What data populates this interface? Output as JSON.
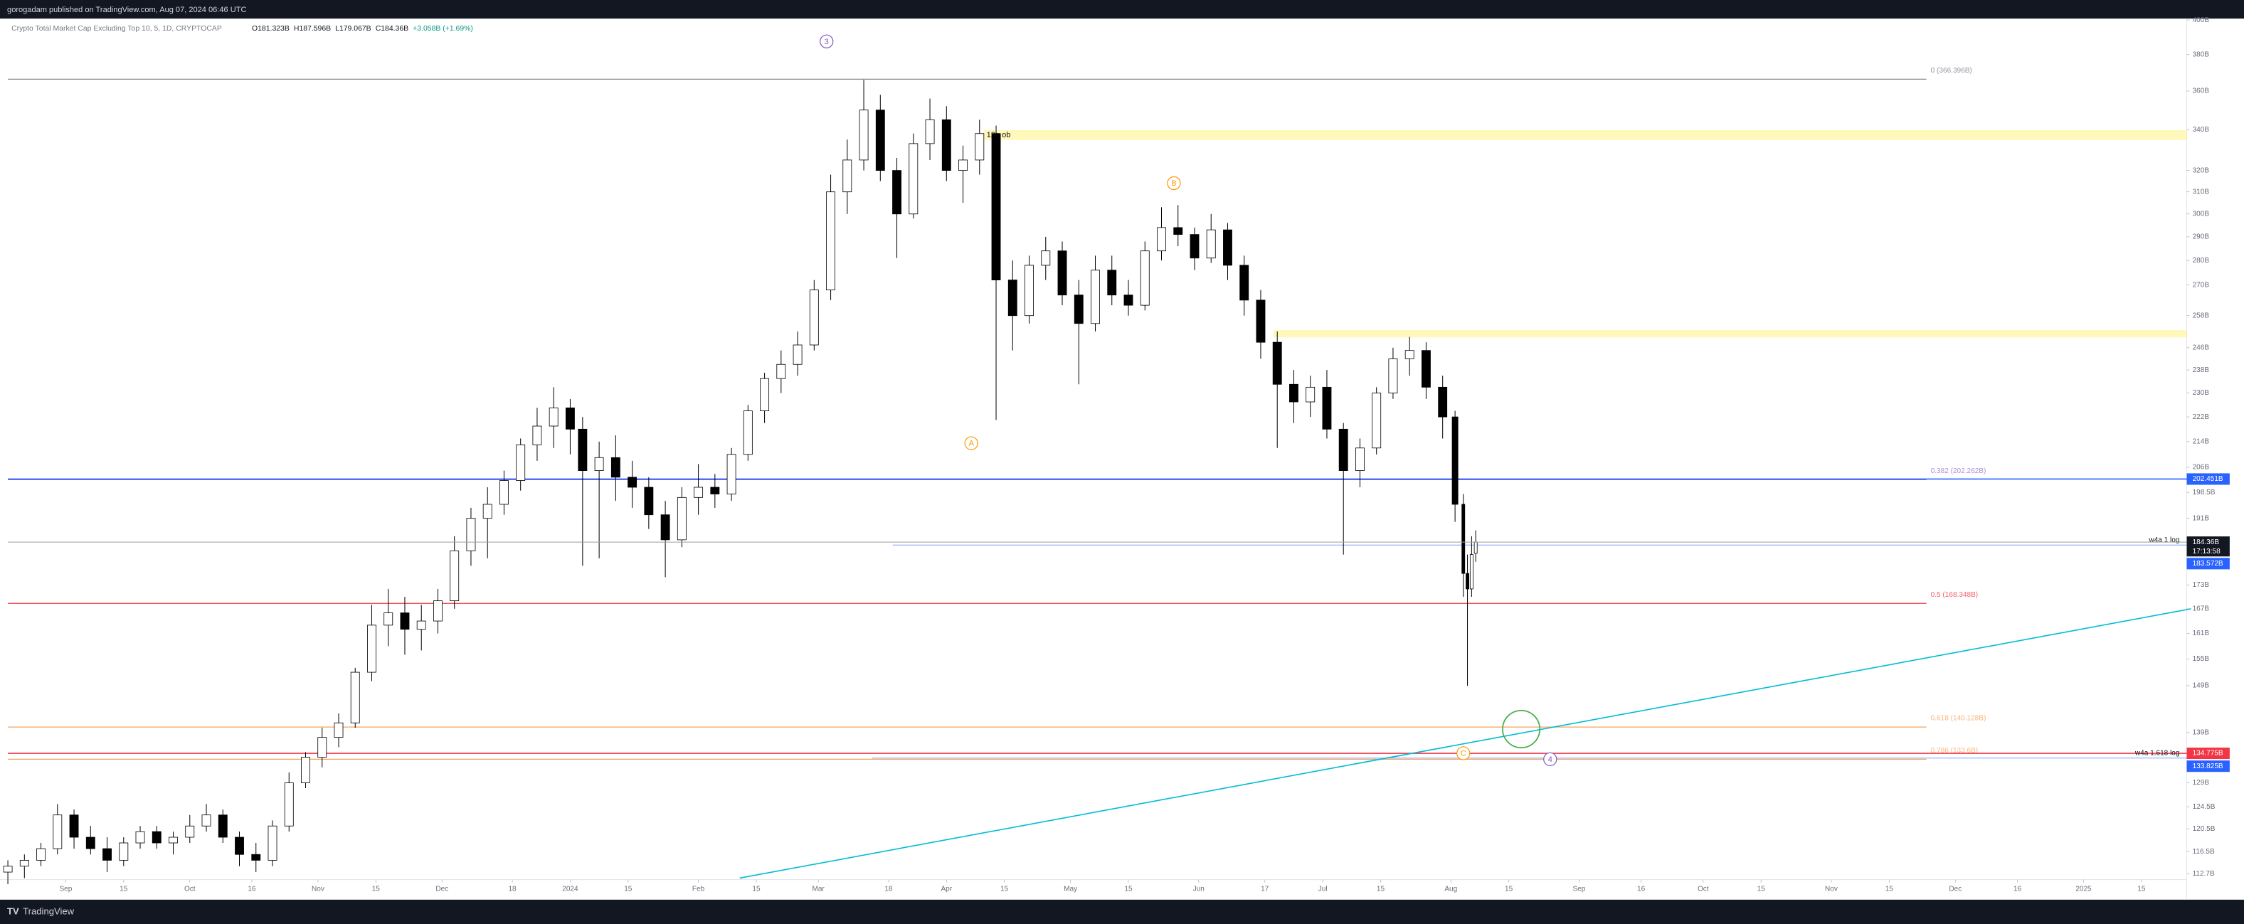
{
  "header": {
    "published": "gorogadam published on TradingView.com, Aug 07, 2024 06:46 UTC"
  },
  "footer": {
    "brand": "TradingView"
  },
  "chart_data": {
    "type": "candlestick",
    "title": "Crypto Total Market Cap Excluding Top 10, 5, 1D, CRYPTOCAP",
    "legend": {
      "open": "O181.323B",
      "high": "H187.596B",
      "low": "L179.067B",
      "close": "C184.36B",
      "change": "+3.058B (+1.69%)"
    },
    "log_scale": true,
    "up_color": "#ffffff",
    "down_color": "#000000",
    "wick_color": "#000000",
    "xlim": [
      "2023-08-18",
      "2025-01-27"
    ],
    "ylim": [
      108.7,
      400
    ],
    "x": [
      "2023-08-18",
      "2023-08-22",
      "2023-08-26",
      "2023-08-30",
      "2023-09-03",
      "2023-09-07",
      "2023-09-11",
      "2023-09-15",
      "2023-09-19",
      "2023-09-23",
      "2023-09-27",
      "2023-10-01",
      "2023-10-05",
      "2023-10-09",
      "2023-10-13",
      "2023-10-17",
      "2023-10-21",
      "2023-10-25",
      "2023-10-29",
      "2023-11-02",
      "2023-11-06",
      "2023-11-10",
      "2023-11-14",
      "2023-11-18",
      "2023-11-22",
      "2023-11-26",
      "2023-11-30",
      "2023-12-04",
      "2023-12-08",
      "2023-12-12",
      "2023-12-16",
      "2023-12-20",
      "2023-12-24",
      "2023-12-28",
      "2024-01-01",
      "2024-01-04",
      "2024-01-08",
      "2024-01-12",
      "2024-01-16",
      "2024-01-20",
      "2024-01-24",
      "2024-01-28",
      "2024-02-01",
      "2024-02-05",
      "2024-02-09",
      "2024-02-13",
      "2024-02-17",
      "2024-02-21",
      "2024-02-25",
      "2024-02-29",
      "2024-03-04",
      "2024-03-08",
      "2024-03-12",
      "2024-03-16",
      "2024-03-20",
      "2024-03-24",
      "2024-03-28",
      "2024-04-01",
      "2024-04-05",
      "2024-04-09",
      "2024-04-13",
      "2024-04-17",
      "2024-04-21",
      "2024-04-25",
      "2024-04-29",
      "2024-05-03",
      "2024-05-07",
      "2024-05-11",
      "2024-05-15",
      "2024-05-19",
      "2024-05-23",
      "2024-05-27",
      "2024-05-31",
      "2024-06-04",
      "2024-06-08",
      "2024-06-12",
      "2024-06-16",
      "2024-06-20",
      "2024-06-24",
      "2024-06-28",
      "2024-07-02",
      "2024-07-06",
      "2024-07-10",
      "2024-07-14",
      "2024-07-18",
      "2024-07-22",
      "2024-07-26",
      "2024-07-30",
      "2024-08-02",
      "2024-08-04",
      "2024-08-05",
      "2024-08-06",
      "2024-08-07"
    ],
    "ohlc": [
      [
        113,
        115,
        111,
        114
      ],
      [
        114,
        116,
        112,
        115
      ],
      [
        115,
        118,
        114,
        117
      ],
      [
        117,
        125,
        116,
        123
      ],
      [
        123,
        124,
        117,
        119
      ],
      [
        119,
        121,
        116,
        117
      ],
      [
        117,
        119,
        113,
        115
      ],
      [
        115,
        119,
        114,
        118
      ],
      [
        118,
        121,
        117,
        120
      ],
      [
        120,
        121,
        117,
        118
      ],
      [
        118,
        120,
        116,
        119
      ],
      [
        119,
        123,
        118,
        121
      ],
      [
        121,
        125,
        120,
        123
      ],
      [
        123,
        124,
        118,
        119
      ],
      [
        119,
        120,
        114,
        116
      ],
      [
        116,
        118,
        113,
        115
      ],
      [
        115,
        122,
        114,
        121
      ],
      [
        121,
        131,
        120,
        129
      ],
      [
        129,
        135,
        128,
        134
      ],
      [
        134,
        140,
        132,
        138
      ],
      [
        138,
        143,
        136,
        141
      ],
      [
        141,
        153,
        140,
        152
      ],
      [
        152,
        168,
        150,
        163
      ],
      [
        163,
        172,
        158,
        166
      ],
      [
        166,
        170,
        156,
        162
      ],
      [
        162,
        168,
        157,
        164
      ],
      [
        164,
        172,
        161,
        169
      ],
      [
        169,
        186,
        167,
        182
      ],
      [
        182,
        194,
        178,
        191
      ],
      [
        191,
        200,
        180,
        195
      ],
      [
        195,
        205,
        192,
        202
      ],
      [
        202,
        215,
        199,
        213
      ],
      [
        213,
        225,
        208,
        219
      ],
      [
        219,
        232,
        212,
        225
      ],
      [
        225,
        228,
        210,
        218
      ],
      [
        218,
        222,
        178,
        205
      ],
      [
        205,
        214,
        180,
        209
      ],
      [
        209,
        216,
        196,
        203
      ],
      [
        203,
        208,
        194,
        200
      ],
      [
        200,
        203,
        188,
        192
      ],
      [
        192,
        196,
        175,
        185
      ],
      [
        185,
        200,
        183,
        197
      ],
      [
        197,
        207,
        192,
        200
      ],
      [
        200,
        204,
        194,
        198
      ],
      [
        198,
        212,
        196,
        210
      ],
      [
        210,
        226,
        208,
        224
      ],
      [
        224,
        237,
        220,
        235
      ],
      [
        235,
        245,
        230,
        240
      ],
      [
        240,
        252,
        236,
        247
      ],
      [
        247,
        272,
        245,
        268
      ],
      [
        268,
        318,
        264,
        310
      ],
      [
        310,
        335,
        300,
        325
      ],
      [
        325,
        366,
        320,
        350
      ],
      [
        350,
        358,
        315,
        320
      ],
      [
        320,
        326,
        281,
        300
      ],
      [
        300,
        338,
        298,
        333
      ],
      [
        333,
        356,
        325,
        345
      ],
      [
        345,
        352,
        315,
        320
      ],
      [
        320,
        332,
        305,
        325
      ],
      [
        325,
        345,
        318,
        338
      ],
      [
        338,
        342,
        221,
        272
      ],
      [
        272,
        280,
        245,
        258
      ],
      [
        258,
        282,
        255,
        278
      ],
      [
        278,
        290,
        272,
        284
      ],
      [
        284,
        288,
        262,
        266
      ],
      [
        266,
        272,
        233,
        255
      ],
      [
        255,
        282,
        252,
        276
      ],
      [
        276,
        282,
        262,
        266
      ],
      [
        266,
        272,
        258,
        262
      ],
      [
        262,
        288,
        260,
        284
      ],
      [
        284,
        303,
        280,
        294
      ],
      [
        294,
        304,
        286,
        291
      ],
      [
        291,
        294,
        276,
        281
      ],
      [
        281,
        300,
        279,
        293
      ],
      [
        293,
        296,
        272,
        278
      ],
      [
        278,
        282,
        258,
        264
      ],
      [
        264,
        268,
        242,
        248
      ],
      [
        248,
        252,
        212,
        233
      ],
      [
        233,
        238,
        220,
        227
      ],
      [
        227,
        236,
        222,
        232
      ],
      [
        232,
        238,
        215,
        218
      ],
      [
        218,
        220,
        181,
        205
      ],
      [
        205,
        215,
        200,
        212
      ],
      [
        212,
        232,
        210,
        230
      ],
      [
        230,
        246,
        228,
        242
      ],
      [
        242,
        250,
        236,
        245
      ],
      [
        245,
        248,
        228,
        232
      ],
      [
        232,
        236,
        215,
        222
      ],
      [
        222,
        224,
        190,
        195
      ],
      [
        195,
        198,
        170,
        176
      ],
      [
        176,
        181,
        149,
        172
      ],
      [
        172,
        186,
        170,
        181
      ],
      [
        181.323,
        187.596,
        179.067,
        184.36
      ]
    ],
    "last_price_label": "184.36B",
    "countdown": "17:13:58",
    "yticks": [
      {
        "value": 400,
        "label": "400B"
      },
      {
        "value": 380,
        "label": "380B"
      },
      {
        "value": 360,
        "label": "360B"
      },
      {
        "value": 340,
        "label": "340B"
      },
      {
        "value": 320,
        "label": "320B"
      },
      {
        "value": 310,
        "label": "310B"
      },
      {
        "value": 300,
        "label": "300B"
      },
      {
        "value": 290,
        "label": "290B"
      },
      {
        "value": 280,
        "label": "280B"
      },
      {
        "value": 270,
        "label": "270B"
      },
      {
        "value": 258,
        "label": "258B"
      },
      {
        "value": 246,
        "label": "246B"
      },
      {
        "value": 238,
        "label": "238B"
      },
      {
        "value": 230,
        "label": "230B"
      },
      {
        "value": 222,
        "label": "222B"
      },
      {
        "value": 214,
        "label": "214B"
      },
      {
        "value": 206,
        "label": "206B"
      },
      {
        "value": 198.5,
        "label": "198.5B"
      },
      {
        "value": 191,
        "label": "191B"
      },
      {
        "value": 173,
        "label": "173B"
      },
      {
        "value": 167,
        "label": "167B"
      },
      {
        "value": 161,
        "label": "161B"
      },
      {
        "value": 155,
        "label": "155B"
      },
      {
        "value": 149,
        "label": "149B"
      },
      {
        "value": 139,
        "label": "139B"
      },
      {
        "value": 129,
        "label": "129B"
      },
      {
        "value": 124.5,
        "label": "124.5B"
      },
      {
        "value": 120.5,
        "label": "120.5B"
      },
      {
        "value": 116.5,
        "label": "116.5B"
      },
      {
        "value": 112.7,
        "label": "112.7B"
      }
    ],
    "xticks": [
      {
        "value": "2023-09-01",
        "label": "Sep"
      },
      {
        "value": "2023-09-15",
        "label": "15"
      },
      {
        "value": "2023-10-01",
        "label": "Oct"
      },
      {
        "value": "2023-10-16",
        "label": "16"
      },
      {
        "value": "2023-11-01",
        "label": "Nov"
      },
      {
        "value": "2023-11-15",
        "label": "15"
      },
      {
        "value": "2023-12-01",
        "label": "Dec"
      },
      {
        "value": "2023-12-18",
        "label": "18"
      },
      {
        "value": "2024-01-01",
        "label": "2024"
      },
      {
        "value": "2024-01-15",
        "label": "15"
      },
      {
        "value": "2024-02-01",
        "label": "Feb"
      },
      {
        "value": "2024-02-15",
        "label": "15"
      },
      {
        "value": "2024-03-01",
        "label": "Mar"
      },
      {
        "value": "2024-03-18",
        "label": "18"
      },
      {
        "value": "2024-04-01",
        "label": "Apr"
      },
      {
        "value": "2024-04-15",
        "label": "15"
      },
      {
        "value": "2024-05-01",
        "label": "May"
      },
      {
        "value": "2024-05-15",
        "label": "15"
      },
      {
        "value": "2024-06-01",
        "label": "Jun"
      },
      {
        "value": "2024-06-17",
        "label": "17"
      },
      {
        "value": "2024-07-01",
        "label": "Jul"
      },
      {
        "value": "2024-07-15",
        "label": "15"
      },
      {
        "value": "2024-08-01",
        "label": "Aug"
      },
      {
        "value": "2024-08-15",
        "label": "15"
      },
      {
        "value": "2024-09-01",
        "label": "Sep"
      },
      {
        "value": "2024-09-16",
        "label": "16"
      },
      {
        "value": "2024-10-01",
        "label": "Oct"
      },
      {
        "value": "2024-10-15",
        "label": "15"
      },
      {
        "value": "2024-11-01",
        "label": "Nov"
      },
      {
        "value": "2024-11-15",
        "label": "15"
      },
      {
        "value": "2024-12-01",
        "label": "Dec"
      },
      {
        "value": "2024-12-16",
        "label": "16"
      },
      {
        "value": "2025-01-01",
        "label": "2025"
      },
      {
        "value": "2025-01-15",
        "label": "15"
      }
    ],
    "fib": {
      "end": "2024-11-24",
      "levels": [
        {
          "value": 366.396,
          "label": "0 (366.396B)",
          "color": "#787b86"
        },
        {
          "value": 202.262,
          "label": "0.382 (202.262B)",
          "color": "#9575cd"
        },
        {
          "value": 168.348,
          "label": "0.5 (168.348B)",
          "color": "#f23645"
        },
        {
          "value": 140.128,
          "label": "0.618 (140.128B)",
          "color": "#f7a35c"
        },
        {
          "value": 133.6,
          "label": "0.786 (133.6B)",
          "color": "#f7a35c"
        }
      ]
    },
    "lines": [
      {
        "value": 202.451,
        "label": "202.451B",
        "color": "#2962ff",
        "start": "2023-08-18"
      },
      {
        "value": 183.572,
        "label": "183.572B",
        "color": "#2962ff",
        "start": "2024-03-19",
        "text": "w4a 1 log"
      },
      {
        "value": 134.775,
        "label": "134.775B",
        "color": "#f23645",
        "start": "2023-08-18"
      },
      {
        "value": 133.825,
        "label": "133.825B",
        "color": "#2962ff",
        "start": "2024-03-14",
        "text": "w4a 1.618 log"
      }
    ],
    "zones": [
      {
        "low": 334.8,
        "high": 339.7,
        "start": "2024-04-10",
        "color": "#fff59d",
        "text": "12h ob"
      },
      {
        "low": 249.8,
        "high": 252.5,
        "start": "2024-06-19",
        "color": "#fff59d"
      }
    ],
    "trendlines": [
      {
        "color": "#00bcd4",
        "points": [
          [
            "2024-02-11",
            112
          ],
          [
            "2025-01-27",
            167
          ]
        ]
      }
    ],
    "annotations": [
      {
        "text": "3",
        "x": "2024-03-03",
        "y": 387.5,
        "color": "#7e57c2"
      },
      {
        "text": "A",
        "x": "2024-04-07",
        "y": 213.5,
        "color": "#ff9800"
      },
      {
        "text": "B",
        "x": "2024-05-26",
        "y": 314,
        "color": "#ff9800"
      },
      {
        "text": "4",
        "x": "2024-08-25",
        "y": 133.6,
        "color": "#7e57c2"
      },
      {
        "text": "C",
        "x": "2024-08-04",
        "y": 134.8,
        "color": "#ff9800"
      }
    ],
    "target_circle": {
      "x": "2024-08-18",
      "y": 139.7,
      "color": "#4caf50"
    }
  }
}
